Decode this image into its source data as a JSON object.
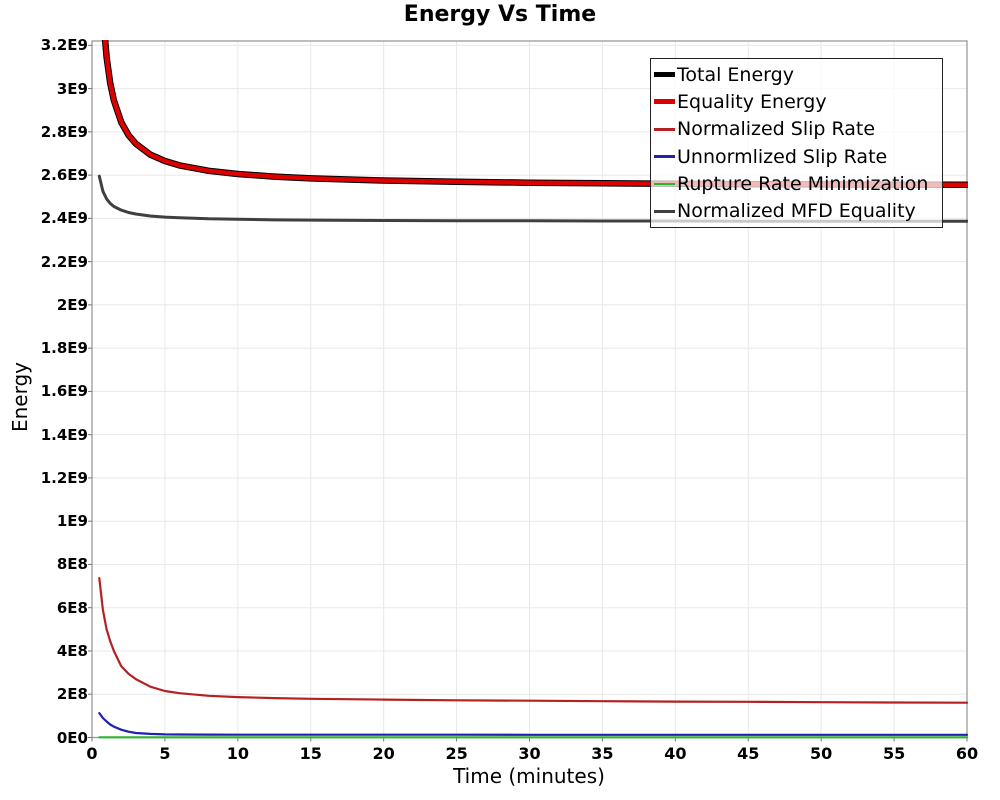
{
  "chart_data": {
    "type": "line",
    "title": "Energy Vs Time",
    "xlabel": "Time (minutes)",
    "ylabel": "Energy",
    "xlim": [
      0,
      60
    ],
    "ylim": [
      0,
      3220000000.0
    ],
    "grid": true,
    "legend_position": "top-right",
    "x_tick_values": [
      0,
      5,
      10,
      15,
      20,
      25,
      30,
      35,
      40,
      45,
      50,
      55,
      60
    ],
    "x_tick_labels": [
      "0",
      "5",
      "10",
      "15",
      "20",
      "25",
      "30",
      "35",
      "40",
      "45",
      "50",
      "55",
      "60"
    ],
    "y_tick_values": [
      0,
      200000000.0,
      400000000.0,
      600000000.0,
      800000000.0,
      1000000000.0,
      1200000000.0,
      1400000000.0,
      1600000000.0,
      1800000000.0,
      2000000000.0,
      2200000000.0,
      2400000000.0,
      2600000000.0,
      2800000000.0,
      3000000000.0,
      3200000000.0
    ],
    "y_tick_labels": [
      "0E0",
      "2E8",
      "4E8",
      "6E8",
      "8E8",
      "1E9",
      "1.2E9",
      "1.4E9",
      "1.6E9",
      "1.8E9",
      "2E9",
      "2.2E9",
      "2.4E9",
      "2.6E9",
      "2.8E9",
      "3E9",
      "3.2E9"
    ],
    "x": [
      0.5,
      0.75,
      1,
      1.25,
      1.5,
      2,
      2.5,
      3,
      4,
      5,
      6,
      8,
      10,
      12.5,
      15,
      20,
      25,
      30,
      35,
      40,
      45,
      50,
      55,
      60
    ],
    "series": [
      {
        "name": "Total Energy",
        "color": "#000000",
        "width": 6.5,
        "y": [
          3745000000.0,
          3345000000.0,
          3145000000.0,
          3025000000.0,
          2945000000.0,
          2845000000.0,
          2785000000.0,
          2745000000.0,
          2695000000.0,
          2665000000.0,
          2645000000.0,
          2620000000.0,
          2605000000.0,
          2593000000.0,
          2585000000.0,
          2575000000.0,
          2569000000.0,
          2565000000.0,
          2562000000.0,
          2560000000.0,
          2558000000.0,
          2557000000.0,
          2556000000.0,
          2555000000.0
        ]
      },
      {
        "name": "Equality Energy",
        "color": "#dd0000",
        "width": 4.5,
        "y": [
          3745000000.0,
          3345000000.0,
          3145000000.0,
          3025000000.0,
          2945000000.0,
          2845000000.0,
          2785000000.0,
          2745000000.0,
          2695000000.0,
          2665000000.0,
          2645000000.0,
          2620000000.0,
          2605000000.0,
          2593000000.0,
          2585000000.0,
          2575000000.0,
          2569000000.0,
          2565000000.0,
          2562000000.0,
          2560000000.0,
          2558000000.0,
          2557000000.0,
          2556000000.0,
          2555000000.0
        ]
      },
      {
        "name": "Normalized Slip Rate",
        "color": "#b22222",
        "width": 2.2,
        "y": [
          737000000.0,
          590000000.0,
          500000000.0,
          445000000.0,
          400000000.0,
          330000000.0,
          295000000.0,
          270000000.0,
          235000000.0,
          215000000.0,
          205000000.0,
          193000000.0,
          187000000.0,
          182000000.0,
          179000000.0,
          175000000.0,
          172000000.0,
          170000000.0,
          168000000.0,
          166000000.0,
          165000000.0,
          163000000.0,
          162000000.0,
          161000000.0
        ]
      },
      {
        "name": "Unnormlized Slip Rate",
        "color": "#2121af",
        "width": 2.2,
        "y": [
          113000000.0,
          90000000.0,
          74000000.0,
          60000000.0,
          50000000.0,
          36000000.0,
          27000000.0,
          21000000.0,
          16500000.0,
          14500000.0,
          13800000.0,
          13200000.0,
          13000000.0,
          13000000.0,
          12900000.0,
          12800000.0,
          12800000.0,
          12700000.0,
          12700000.0,
          12600000.0,
          12600000.0,
          12500000.0,
          12500000.0,
          12500000.0
        ]
      },
      {
        "name": "Rupture Rate Minimization",
        "color": "#2cb52c",
        "width": 2.2,
        "y": [
          1000000.0,
          1000000.0,
          1000000.0,
          1000000.0,
          1000000.0,
          1000000.0,
          1000000.0,
          1000000.0,
          1000000.0,
          1000000.0,
          1000000.0,
          1000000.0,
          1000000.0,
          1000000.0,
          1000000.0,
          1000000.0,
          1000000.0,
          1000000.0,
          1000000.0,
          1000000.0,
          1000000.0,
          1000000.0,
          1000000.0,
          1000000.0
        ]
      },
      {
        "name": "Normalized MFD Equality",
        "color": "#3f3f3f",
        "width": 3,
        "y": [
          2595000000.0,
          2525000000.0,
          2490000000.0,
          2469000000.0,
          2455000000.0,
          2438000000.0,
          2427000000.0,
          2420000000.0,
          2411000000.0,
          2406000000.0,
          2403000000.0,
          2398000000.0,
          2396000000.0,
          2393000000.0,
          2392000000.0,
          2390000000.0,
          2389000000.0,
          2389000000.0,
          2388000000.0,
          2388000000.0,
          2387000000.0,
          2387000000.0,
          2387000000.0,
          2387000000.0
        ]
      }
    ],
    "colors": {
      "grid": "#e8e8e8",
      "frame": "#9a9a9a",
      "tick": "#777777",
      "legend_border": "#222222"
    }
  }
}
